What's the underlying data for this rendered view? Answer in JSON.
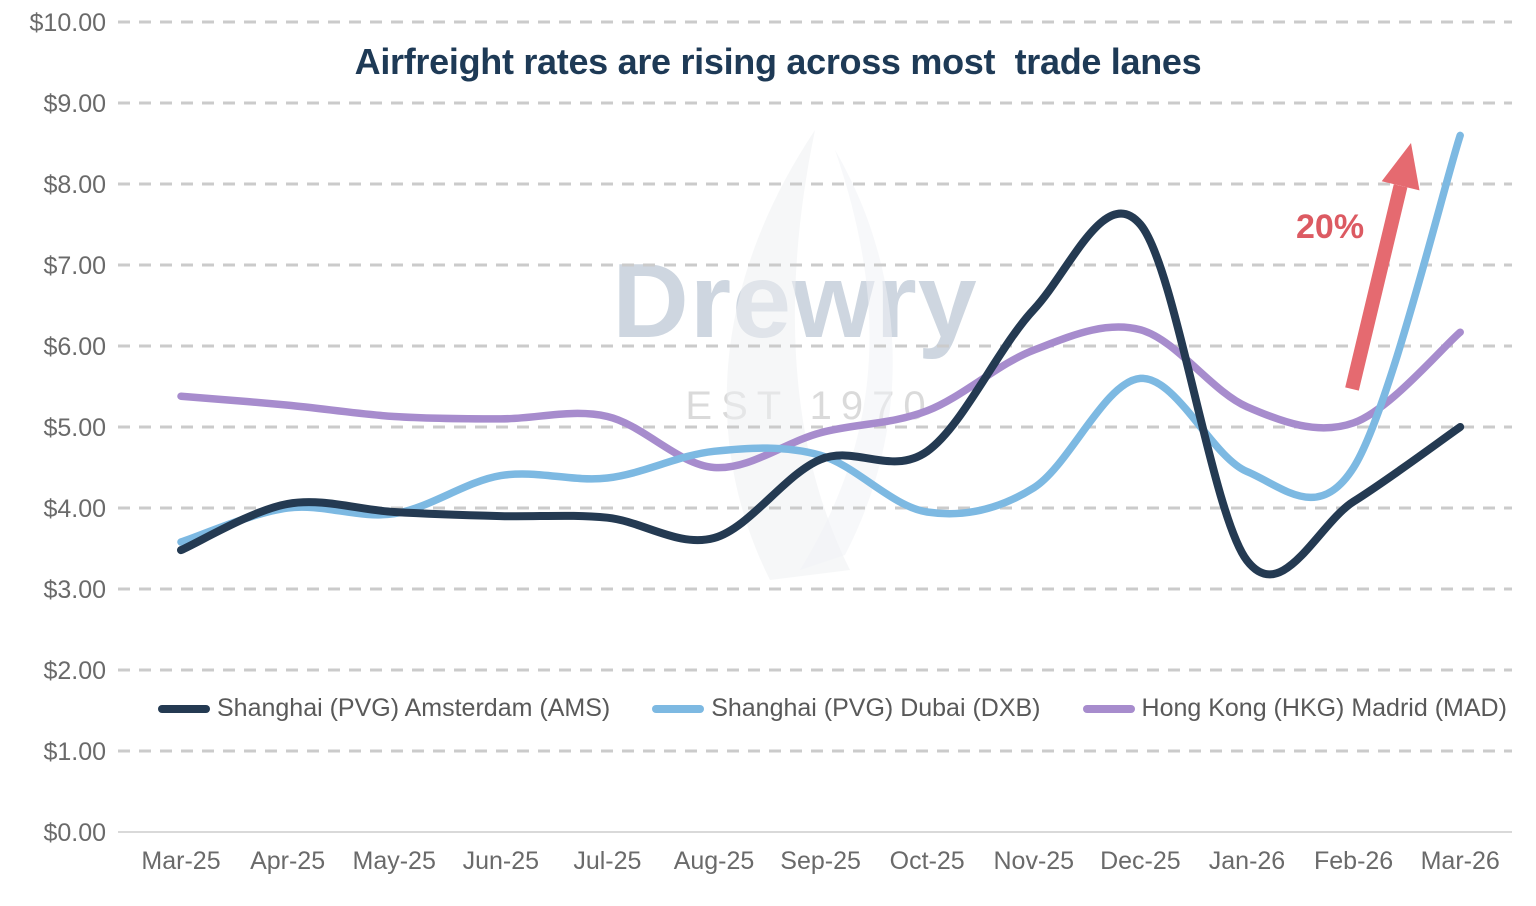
{
  "title": "Airfreight rates are rising across most  trade lanes",
  "watermark": {
    "brand": "Drewry",
    "established": "EST 1970",
    "brand_color": "#c6d0db",
    "est_color": "#d7d7d7"
  },
  "annotation": {
    "label": "20%",
    "text_color": "#dc5a62",
    "arrow_color": "#e56a70"
  },
  "axis": {
    "label_color": "#6a6a6a",
    "gridline_color": "#cbcbcb",
    "baseline_color": "#d9d9d9"
  },
  "legend": {
    "text_color": "#595959",
    "position": "bottom"
  },
  "chart_data": {
    "type": "line",
    "title": "Airfreight rates are rising across most  trade lanes",
    "x": [
      "Mar-25",
      "Apr-25",
      "May-25",
      "Jun-25",
      "Jul-25",
      "Aug-25",
      "Sep-25",
      "Oct-25",
      "Nov-25",
      "Dec-25",
      "Jan-26",
      "Feb-26",
      "Mar-26"
    ],
    "series": [
      {
        "name": "Shanghai (PVG) Amsterdam (AMS)",
        "color": "#243a52",
        "values": [
          3.48,
          4.05,
          3.95,
          3.9,
          3.88,
          3.63,
          4.6,
          4.7,
          6.45,
          7.5,
          3.35,
          4.08,
          5.0
        ]
      },
      {
        "name": "Shanghai (PVG) Dubai (DXB)",
        "color": "#7db9e2",
        "values": [
          3.58,
          4.0,
          3.93,
          4.4,
          4.37,
          4.7,
          4.65,
          3.95,
          4.25,
          5.6,
          4.45,
          4.5,
          8.6
        ]
      },
      {
        "name": "Hong Kong (HKG) Madrid (MAD)",
        "color": "#a78ccd",
        "values": [
          5.38,
          5.27,
          5.13,
          5.1,
          5.13,
          4.5,
          4.93,
          5.2,
          5.95,
          6.2,
          5.25,
          5.05,
          6.17
        ]
      }
    ],
    "xlabel": "",
    "ylabel": "",
    "ylim": [
      0,
      10
    ],
    "y_ticks": [
      "$0.00",
      "$1.00",
      "$2.00",
      "$3.00",
      "$4.00",
      "$5.00",
      "$6.00",
      "$7.00",
      "$8.00",
      "$9.00",
      "$10.00"
    ],
    "grid": "horizontal-dashed",
    "legend_position": "bottom",
    "smoothing": "spline",
    "annotation": {
      "label": "20%",
      "near": "Feb-26"
    }
  }
}
